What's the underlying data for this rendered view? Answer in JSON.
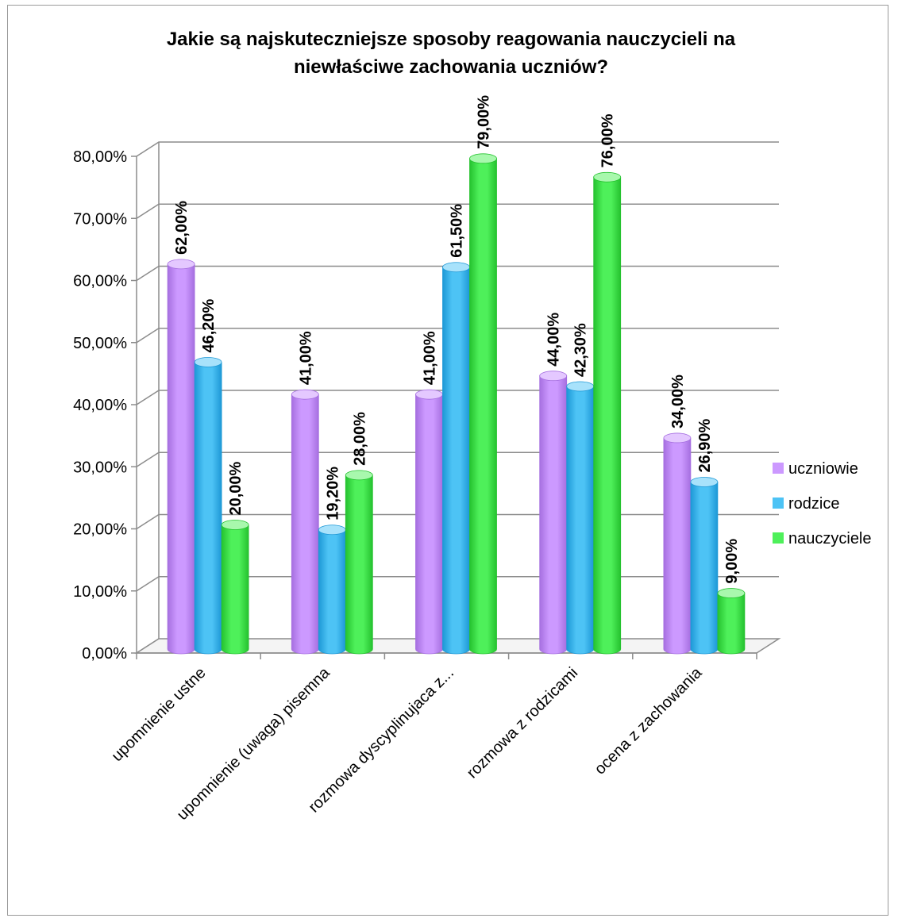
{
  "chart_data": {
    "type": "bar",
    "style": "3d-cylinder",
    "title_lines": [
      "Jakie są najskutecznie​jsze sposoby reagowania nauczycieli na",
      "niewłaściwe zachowania uczniów?"
    ],
    "categories": [
      "upomnienie ustne",
      "upomnienie (uwaga) pisemna",
      "rozmowa dyscyplinujaca z...",
      "rozmowa z rodzicami",
      "ocena z zachowania"
    ],
    "series": [
      {
        "name": "uczniowie",
        "color": "#cc99ff",
        "dark": "#a66fe0",
        "top": "#e4c8ff",
        "values": [
          62.0,
          41.0,
          41.0,
          44.0,
          34.0
        ],
        "labels": [
          "62,00%",
          "41,00%",
          "41,00%",
          "44,00%",
          "34,00%"
        ]
      },
      {
        "name": "rodzice",
        "color": "#4dc3f5",
        "dark": "#1d98d6",
        "top": "#a8e2fb",
        "values": [
          46.2,
          19.2,
          61.5,
          42.3,
          26.9
        ],
        "labels": [
          "46,20%",
          "19,20%",
          "61,50%",
          "42,30%",
          "26,90%"
        ]
      },
      {
        "name": "nauczyciele",
        "color": "#4ef05a",
        "dark": "#25c22f",
        "top": "#a8f8ad",
        "values": [
          20.0,
          28.0,
          79.0,
          76.0,
          9.0
        ],
        "labels": [
          "20,00%",
          "28,00%",
          "79,00%",
          "76,00%",
          "9,00%"
        ]
      }
    ],
    "y_ticks": [
      "0,00%",
      "10,00%",
      "20,00%",
      "30,00%",
      "40,00%",
      "50,00%",
      "60,00%",
      "70,00%",
      "80,00%"
    ],
    "ylim": [
      0,
      80
    ],
    "grid": true,
    "legend_position": "right"
  }
}
